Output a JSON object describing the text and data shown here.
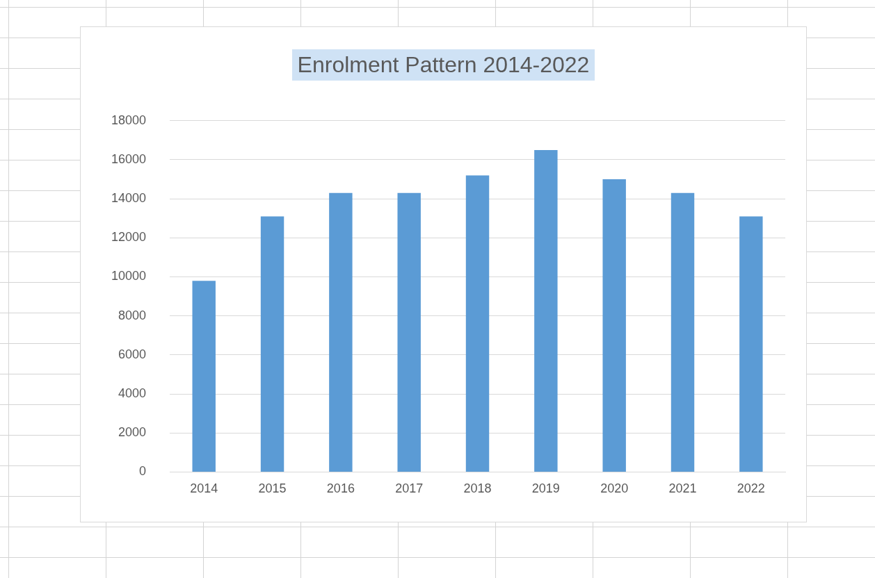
{
  "chart_data": {
    "type": "bar",
    "title": "Enrolment Pattern 2014-2022",
    "categories": [
      "2014",
      "2015",
      "2016",
      "2017",
      "2018",
      "2019",
      "2020",
      "2021",
      "2022"
    ],
    "values": [
      9800,
      13100,
      14300,
      14300,
      15200,
      16500,
      15000,
      14300,
      13100
    ],
    "color": "#5b9bd5",
    "ylim": [
      0,
      18000
    ],
    "yticks": [
      0,
      2000,
      4000,
      6000,
      8000,
      10000,
      12000,
      14000,
      16000,
      18000
    ],
    "grid": "y",
    "legend": false
  }
}
